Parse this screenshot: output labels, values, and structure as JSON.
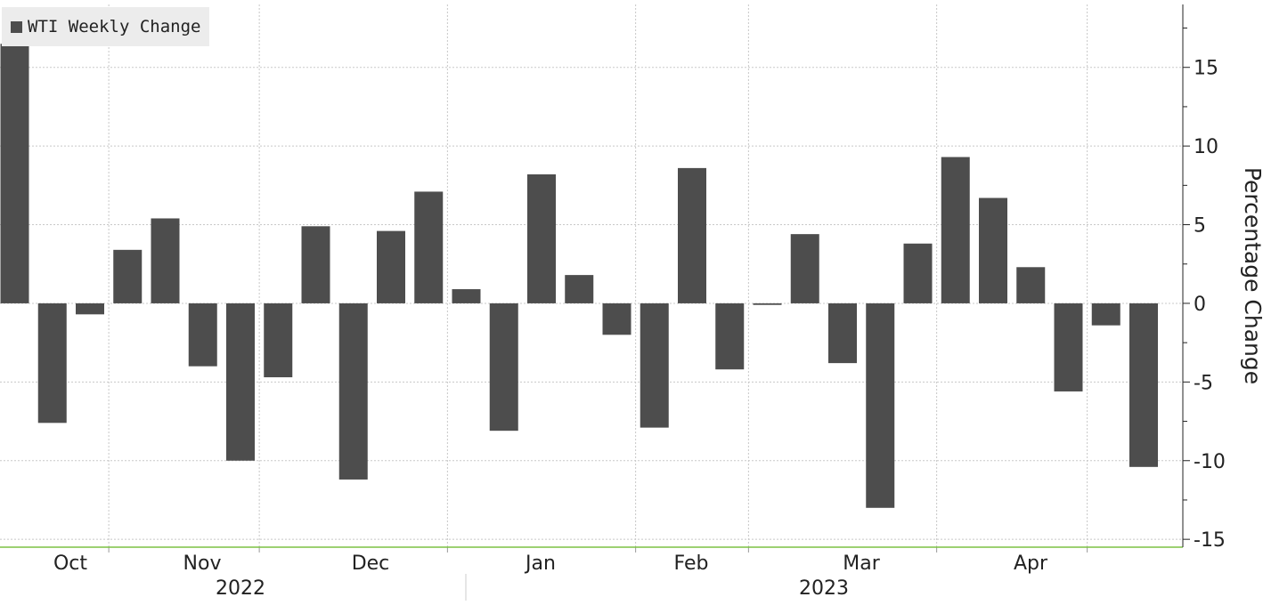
{
  "chart_data": {
    "type": "bar",
    "series": [
      {
        "name": "WTI Weekly Change",
        "color": "#4d4d4d",
        "values": [
          16.5,
          -7.6,
          -0.7,
          3.4,
          5.4,
          -4.0,
          -10.0,
          -4.7,
          4.9,
          -11.2,
          4.6,
          7.1,
          0.9,
          -8.1,
          8.2,
          1.8,
          -2.0,
          -7.9,
          8.6,
          -4.2,
          -0.1,
          4.4,
          -3.8,
          -13.0,
          3.8,
          9.3,
          6.7,
          2.3,
          -5.6,
          -1.4,
          -10.4
        ]
      }
    ],
    "x_month_labels": [
      "Oct",
      "Nov",
      "Dec",
      "Jan",
      "Feb",
      "Mar",
      "Apr"
    ],
    "x_year_labels": [
      "2022",
      "2023"
    ],
    "ylabel": "Percentage Change",
    "ylim": [
      -15.5,
      19
    ],
    "yticks": [
      15,
      10,
      5,
      0,
      -5,
      -10,
      -15
    ],
    "y_axis_side": "right",
    "grid": true,
    "legend_position": "top-left"
  }
}
